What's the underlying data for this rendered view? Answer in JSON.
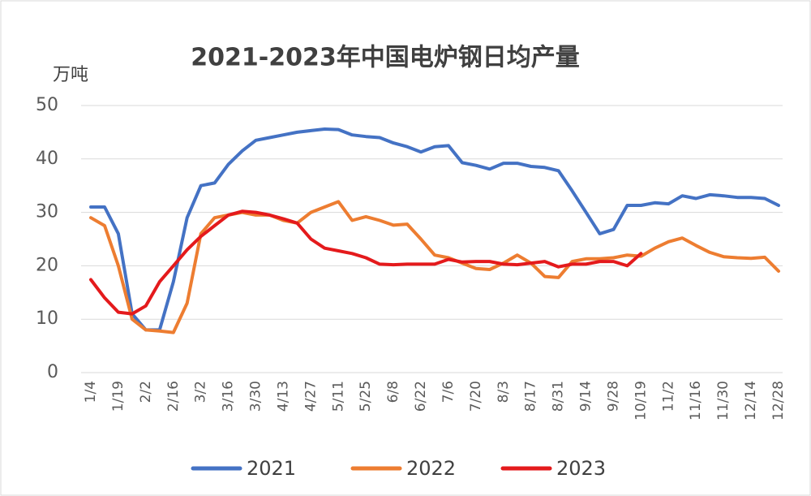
{
  "chart_data": {
    "type": "line",
    "title": "2021-2023年中国电炉钢日均产量",
    "y_label": "万吨",
    "categories": [
      "1/4",
      null,
      "1/19",
      null,
      "2/2",
      null,
      "2/16",
      null,
      "3/2",
      null,
      "3/16",
      null,
      "3/30",
      null,
      "4/13",
      null,
      "4/27",
      null,
      "5/11",
      null,
      "5/25",
      null,
      "6/8",
      null,
      "6/22",
      null,
      "7/6",
      null,
      "7/20",
      null,
      "8/3",
      null,
      "8/17",
      null,
      "8/31",
      null,
      "9/14",
      null,
      "9/28",
      null,
      "10/19",
      null,
      "11/2",
      null,
      "11/16",
      null,
      "11/30",
      null,
      "12/14",
      null,
      "12/28"
    ],
    "series": [
      {
        "name": "2021",
        "color": "#4472c4",
        "values": [
          31,
          31,
          26,
          11,
          8,
          8,
          17,
          29,
          35,
          35.5,
          39,
          41.5,
          43.5,
          44,
          44.5,
          45,
          45.3,
          45.6,
          45.5,
          44.5,
          44.2,
          44,
          43,
          42.3,
          41.3,
          42.3,
          42.5,
          39.3,
          38.8,
          38.1,
          39.2,
          39.2,
          38.6,
          38.4,
          37.8,
          34,
          30,
          26,
          26.8,
          31.3,
          31.3,
          31.8,
          31.6,
          33.1,
          32.6,
          33.3,
          33.1,
          32.8,
          32.8,
          32.6,
          31.3
        ]
      },
      {
        "name": "2022",
        "color": "#ed7d31",
        "values": [
          29,
          27.5,
          20,
          10,
          8,
          7.8,
          7.5,
          13,
          26,
          29,
          29.5,
          30,
          29.5,
          29.5,
          28.5,
          28,
          30,
          31,
          32,
          28.5,
          29.2,
          28.5,
          27.6,
          27.8,
          25,
          22,
          21.5,
          20.5,
          19.5,
          19.3,
          20.5,
          22,
          20.5,
          18,
          17.8,
          20.8,
          21.3,
          21.3,
          21.5,
          22,
          21.8,
          23.3,
          24.5,
          25.2,
          23.8,
          22.5,
          21.7,
          21.5,
          21.4,
          21.6,
          19
        ]
      },
      {
        "name": "2023",
        "color": "#e41a1c",
        "values": [
          17.4,
          14,
          11.3,
          11,
          12.5,
          17,
          20,
          23,
          25.5,
          27.5,
          29.5,
          30.2,
          30,
          29.5,
          28.8,
          28,
          25,
          23.3,
          22.8,
          22.3,
          21.5,
          20.3,
          20.2,
          20.3,
          20.3,
          20.3,
          21.2,
          20.7,
          20.8,
          20.8,
          20.3,
          20.2,
          20.5,
          20.8,
          19.8,
          20.3,
          20.3,
          20.8,
          20.8,
          20,
          22.3,
          null,
          null,
          null,
          null,
          null,
          null,
          null,
          null,
          null,
          null
        ]
      }
    ],
    "ylim": [
      0,
      50
    ],
    "yticks": [
      0,
      10,
      20,
      30,
      40,
      50
    ],
    "grid": true,
    "legend": "bottom"
  }
}
